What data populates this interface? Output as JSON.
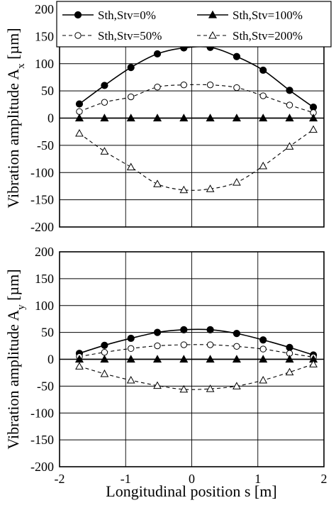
{
  "chart_data": [
    {
      "type": "line",
      "panel": "top",
      "ylabel": "Vibration amplitude A",
      "ylabel_sub": "x",
      "ylabel_unit": "[µm]",
      "xlabel": "",
      "xlim": [
        -2,
        2
      ],
      "ylim": [
        -200,
        200
      ],
      "xticks": [
        -2,
        -1,
        0,
        1,
        2
      ],
      "yticks": [
        200,
        150,
        100,
        50,
        0,
        -50,
        -100,
        -150,
        -200
      ],
      "xtick_labels_shown": false,
      "grid": true,
      "legend": {
        "placement": "top",
        "columns": 2,
        "entries": [
          {
            "label": "Sth,Stv=0%",
            "marker": "filled-circle",
            "line": "solid"
          },
          {
            "label": "Sth,Stv=100%",
            "marker": "filled-triangle",
            "line": "solid"
          },
          {
            "label": "Sth,Stv=50%",
            "marker": "open-circle",
            "line": "dashed"
          },
          {
            "label": "Sth,Stv=200%",
            "marker": "open-triangle",
            "line": "dashed"
          }
        ]
      },
      "x": [
        -1.7,
        -1.32,
        -0.92,
        -0.52,
        -0.12,
        0.28,
        0.68,
        1.08,
        1.48,
        1.84
      ],
      "series": [
        {
          "name": "Sth,Stv=0%",
          "marker": "filled-circle",
          "line": "solid",
          "values": [
            26,
            60,
            93,
            118,
            129,
            130,
            113,
            88,
            51,
            20
          ]
        },
        {
          "name": "Sth,Stv=50%",
          "marker": "open-circle",
          "line": "dashed",
          "values": [
            12,
            29,
            39,
            57,
            61,
            61,
            56,
            41,
            24,
            10
          ]
        },
        {
          "name": "Sth,Stv=100%",
          "marker": "filled-triangle",
          "line": "solid",
          "values": [
            0,
            0,
            0,
            0,
            0,
            0,
            0,
            0,
            0,
            0
          ]
        },
        {
          "name": "Sth,Stv=200%",
          "marker": "open-triangle",
          "line": "dashed",
          "values": [
            -28,
            -61,
            -90,
            -121,
            -132,
            -130,
            -118,
            -88,
            -52,
            -21
          ]
        }
      ]
    },
    {
      "type": "line",
      "panel": "bottom",
      "ylabel": "Vibration amplitude A",
      "ylabel_sub": "y",
      "ylabel_unit": "[µm]",
      "xlabel": "Longitudinal position s  [m]",
      "xlim": [
        -2,
        2
      ],
      "ylim": [
        -200,
        200
      ],
      "xticks": [
        -2,
        -1,
        0,
        1,
        2
      ],
      "yticks": [
        200,
        150,
        100,
        50,
        0,
        -50,
        -100,
        -150,
        -200
      ],
      "xtick_labels_shown": true,
      "grid": true,
      "x": [
        -1.7,
        -1.32,
        -0.92,
        -0.52,
        -0.12,
        0.28,
        0.68,
        1.08,
        1.48,
        1.84
      ],
      "series": [
        {
          "name": "Sth,Stv=0%",
          "marker": "filled-circle",
          "line": "solid",
          "values": [
            11,
            26,
            39,
            50,
            55,
            55,
            48,
            36,
            22,
            8
          ]
        },
        {
          "name": "Sth,Stv=50%",
          "marker": "open-circle",
          "line": "dashed",
          "values": [
            5,
            13,
            20,
            25,
            27,
            27,
            24,
            19,
            11,
            4
          ]
        },
        {
          "name": "Sth,Stv=100%",
          "marker": "filled-triangle",
          "line": "solid",
          "values": [
            0,
            0,
            0,
            0,
            0,
            0,
            0,
            0,
            0,
            0
          ]
        },
        {
          "name": "Sth,Stv=200%",
          "marker": "open-triangle",
          "line": "dashed",
          "values": [
            -13,
            -27,
            -39,
            -49,
            -56,
            -55,
            -50,
            -39,
            -24,
            -9
          ]
        }
      ]
    }
  ]
}
